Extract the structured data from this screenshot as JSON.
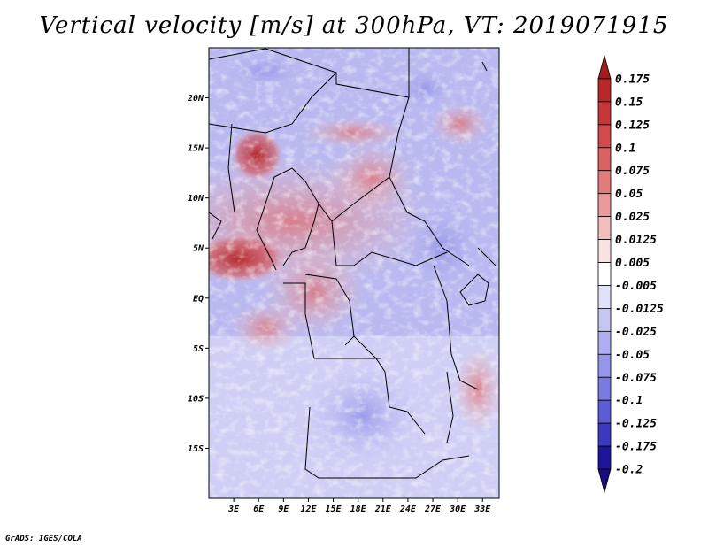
{
  "title": "Vertical velocity [m/s] at 300hPa, VT: 2019071915",
  "credit": "GrADS: IGES/COLA",
  "map": {
    "lon_range": [
      0,
      35
    ],
    "lat_range": [
      -20,
      25
    ],
    "lat_ticks": [
      "20N",
      "15N",
      "10N",
      "5N",
      "EQ",
      "5S",
      "10S",
      "15S"
    ],
    "lon_ticks": [
      "3E",
      "6E",
      "9E",
      "12E",
      "15E",
      "18E",
      "21E",
      "24E",
      "27E",
      "30E",
      "33E"
    ],
    "colors": {
      "positive_dark": "#b31f1f",
      "positive_mid": "#e06a6a",
      "positive_light": "#f4c4c4",
      "negative_light": "#d6d6f5",
      "negative_mid": "#9a9aee",
      "negative_dark": "#2a22a8",
      "border": "#000000"
    }
  },
  "colorbar": {
    "labels": [
      "0.175",
      "0.15",
      "0.125",
      "0.1",
      "0.075",
      "0.05",
      "0.025",
      "0.0125",
      "0.005",
      "-0.005",
      "-0.0125",
      "-0.025",
      "-0.05",
      "-0.075",
      "-0.1",
      "-0.125",
      "-0.175",
      "-0.2"
    ],
    "colors": [
      "#a51b1b",
      "#b82828",
      "#c83737",
      "#d44a4a",
      "#dc6262",
      "#e37b7b",
      "#ea9a9a",
      "#f2bebe",
      "#fae2e2",
      "#ffffff",
      "#e1e1f9",
      "#c6c6f4",
      "#aeaef0",
      "#9595eb",
      "#7a7ae3",
      "#5c5cd6",
      "#3b38c1",
      "#1e159f",
      "#160c80"
    ]
  }
}
